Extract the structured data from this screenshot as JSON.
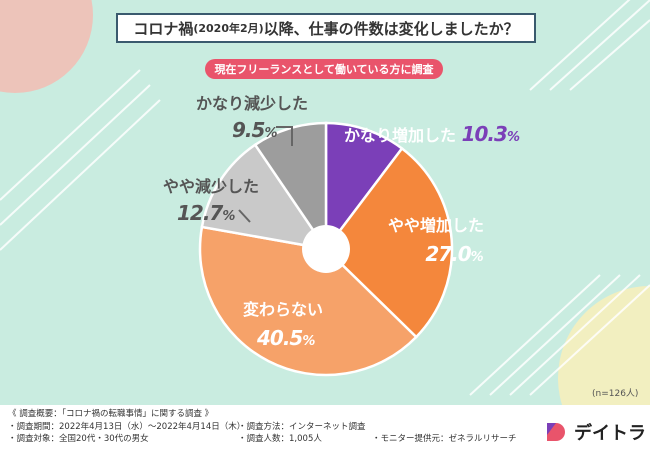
{
  "title": {
    "main_before": "コロナ禍",
    "main_small": "(2020年2月)",
    "main_after": "以降、仕事の件数は変化しましたか？"
  },
  "subtitle": "現在フリーランスとして働いている方に調査",
  "chart_data": {
    "type": "pie",
    "title": "コロナ禍(2020年2月)以降、仕事の件数は変化しましたか？",
    "subtitle": "現在フリーランスとして働いている方に調査",
    "unit": "%",
    "slices": [
      {
        "label": "かなり増加した",
        "value": 10.3,
        "color": "#7b3fb8"
      },
      {
        "label": "やや増加した",
        "value": 27.0,
        "color": "#f4873c"
      },
      {
        "label": "変わらない",
        "value": 40.5,
        "color": "#f6a269"
      },
      {
        "label": "やや減少した",
        "value": 12.7,
        "color": "#c9c9c9"
      },
      {
        "label": "かなり減少した",
        "value": 9.5,
        "color": "#9d9d9d"
      }
    ],
    "start": "12 o'clock, clockwise",
    "donut_hole": true,
    "sample_note": "(n=126人)"
  },
  "labels": {
    "s0": {
      "name": "かなり増加した",
      "num": "10.3",
      "unit": "%"
    },
    "s1": {
      "name": "やや増加した",
      "num": "27.0",
      "unit": "%"
    },
    "s2": {
      "name": "変わらない",
      "num": "40.5",
      "unit": "%"
    },
    "s3": {
      "name": "やや減少した",
      "num": "12.7",
      "unit": "%"
    },
    "s4": {
      "name": "かなり減少した",
      "num": "9.5",
      "unit": "%"
    }
  },
  "footer": {
    "survey_title": "《 調査概要：「コロナ禍の転職事情」に関する調査 》",
    "period": "調査期間：2022年4月13日（水）～2022年4月14日（木）",
    "method": "調査方法：インターネット調査",
    "target": "調査対象：全国20代・30代の男女",
    "people": "調査人数：1,005人",
    "provider": "モニター提供元：ゼネラルリサーチ"
  },
  "brand": {
    "name": "デイトラ"
  },
  "colors": {
    "background": "#c9ece0",
    "accent_pink": "#e9546b",
    "title_border": "#3a5a6e"
  }
}
